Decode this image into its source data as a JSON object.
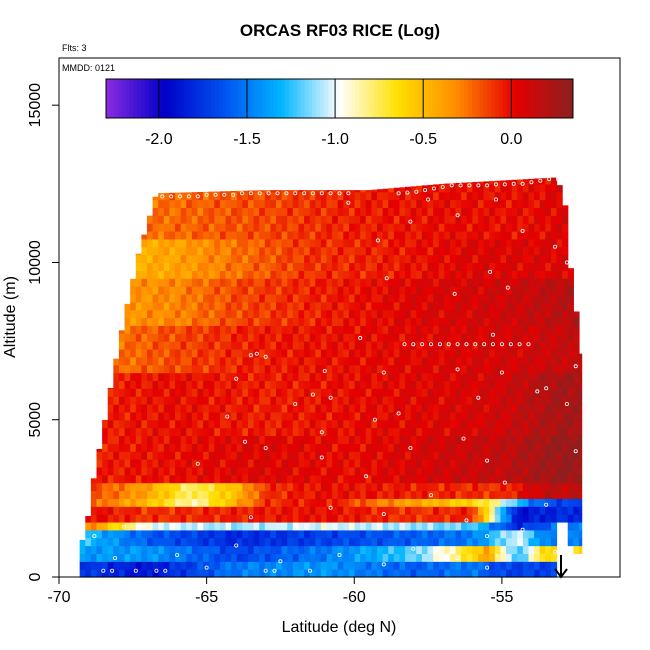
{
  "chart_data": {
    "type": "heatmap",
    "title": "ORCAS RF03 RICE (Log)",
    "xlabel": "Latitude (deg N)",
    "ylabel": "Altitude (m)",
    "xlim": [
      -70,
      -51
    ],
    "ylim": [
      0,
      16500
    ],
    "xticks": [
      -70,
      -65,
      -60,
      -55
    ],
    "yticks": [
      0,
      5000,
      10000,
      15000
    ],
    "flights_note": "Flts: 3",
    "date_note": "MMDD: 0121",
    "colorbar": {
      "range": [
        -2.3,
        0.35
      ],
      "ticks": [
        -2.0,
        -1.5,
        -1.0,
        -0.5,
        0.0
      ],
      "tick_labels": [
        "-2.0",
        "-1.5",
        "-1.0",
        "-0.5",
        "0.0"
      ],
      "colors": [
        "#8B2BE2",
        "#0000C8",
        "#0050F0",
        "#00B4FF",
        "#FFFFFF",
        "#FFE000",
        "#FF8C00",
        "#E60000",
        "#8B2020"
      ]
    },
    "envelope": [
      {
        "x": -69.3,
        "bottom": 0,
        "top": 800
      },
      {
        "x": -69.0,
        "bottom": 0,
        "top": 2000
      },
      {
        "x": -68.8,
        "bottom": 0,
        "top": 3300
      },
      {
        "x": -68.5,
        "bottom": 0,
        "top": 4700
      },
      {
        "x": -68.2,
        "bottom": 0,
        "top": 6300
      },
      {
        "x": -67.8,
        "bottom": 0,
        "top": 8200
      },
      {
        "x": -67.3,
        "bottom": 0,
        "top": 10300
      },
      {
        "x": -66.7,
        "bottom": 0,
        "top": 12200
      },
      {
        "x": -63.0,
        "bottom": 0,
        "top": 12300
      },
      {
        "x": -59.5,
        "bottom": 0,
        "top": 12300
      },
      {
        "x": -57.0,
        "bottom": 0,
        "top": 12500
      },
      {
        "x": -53.2,
        "bottom": 0,
        "top": 12700
      },
      {
        "x": -52.9,
        "bottom": 0,
        "top": 12200
      },
      {
        "x": -52.7,
        "bottom": 0,
        "top": 10000
      },
      {
        "x": -52.3,
        "bottom": 0,
        "top": 7100
      },
      {
        "x": -52.3,
        "bottom": 700,
        "top": 7100
      },
      {
        "x": -52.7,
        "bottom": 1000,
        "top": 5000
      },
      {
        "x": -52.9,
        "bottom": 1800,
        "top": 3000
      }
    ],
    "layers": [
      {
        "alt": [
          0,
          400
        ],
        "values": [
          [
            -69.5,
            -1.7
          ],
          [
            -67.0,
            -1.9
          ],
          [
            -64.0,
            -1.5
          ],
          [
            -61.0,
            -1.4
          ],
          [
            -58.0,
            -1.6
          ],
          [
            -56.0,
            -1.5
          ],
          [
            -55.0,
            -1.7
          ]
        ]
      },
      {
        "alt": [
          400,
          900
        ],
        "values": [
          [
            -69.5,
            -1.4
          ],
          [
            -67.0,
            -1.4
          ],
          [
            -64.0,
            -1.7
          ],
          [
            -61.0,
            -1.5
          ],
          [
            -58.0,
            -1.2
          ],
          [
            -56.5,
            -0.8
          ],
          [
            -55.5,
            -0.4
          ],
          [
            -54.5,
            -1.3
          ],
          [
            -53.5,
            -0.6
          ]
        ]
      },
      {
        "alt": [
          900,
          1400
        ],
        "values": [
          [
            -69.5,
            -1.2
          ],
          [
            -67.0,
            -1.6
          ],
          [
            -64.0,
            -1.8
          ],
          [
            -61.0,
            -1.7
          ],
          [
            -58.0,
            -1.6
          ],
          [
            -56.0,
            -1.5
          ],
          [
            -54.5,
            -1.0
          ],
          [
            -53.5,
            -1.5
          ]
        ]
      },
      {
        "alt": [
          1400,
          1800
        ],
        "values": [
          [
            -69.5,
            -0.1
          ],
          [
            -67.0,
            -1.0
          ],
          [
            -64.0,
            -1.1
          ],
          [
            -61.0,
            -1.0
          ],
          [
            -58.0,
            -1.1
          ],
          [
            -56.0,
            -1.2
          ],
          [
            -54.5,
            -1.8
          ],
          [
            -53.0,
            -1.5
          ]
        ]
      },
      {
        "alt": [
          1800,
          2200
        ],
        "values": [
          [
            -69.5,
            0.05
          ],
          [
            -67.0,
            -0.1
          ],
          [
            -64.0,
            -0.05
          ],
          [
            -61.0,
            0.0
          ],
          [
            -58.0,
            -0.1
          ],
          [
            -56.0,
            -0.05
          ],
          [
            -54.5,
            -1.9
          ],
          [
            -53.0,
            -1.8
          ]
        ]
      },
      {
        "alt": [
          2200,
          2500
        ],
        "values": [
          [
            -69.5,
            -0.1
          ],
          [
            -67.0,
            -0.5
          ],
          [
            -65.5,
            -0.9
          ],
          [
            -64.5,
            -0.6
          ],
          [
            -63.0,
            -0.1
          ],
          [
            -61.0,
            0.0
          ],
          [
            -59.0,
            -0.3
          ],
          [
            -57.0,
            -0.5
          ],
          [
            -55.5,
            -0.7
          ],
          [
            -54.0,
            -1.5
          ],
          [
            -53.0,
            -1.7
          ]
        ]
      },
      {
        "alt": [
          2500,
          2900
        ],
        "values": [
          [
            -69.5,
            -0.05
          ],
          [
            -67.0,
            -0.4
          ],
          [
            -65.5,
            -0.8
          ],
          [
            -64.0,
            -0.5
          ],
          [
            -63.0,
            -0.1
          ],
          [
            -61.0,
            0.0
          ],
          [
            -58.0,
            -0.05
          ],
          [
            -55.0,
            -0.1
          ],
          [
            -53.5,
            0.15
          ]
        ]
      },
      {
        "alt": [
          2900,
          4500
        ],
        "values": [
          [
            -69.0,
            -0.05
          ],
          [
            -66.0,
            0.0
          ],
          [
            -63.0,
            0.05
          ],
          [
            -60.0,
            0.0
          ],
          [
            -57.0,
            0.1
          ],
          [
            -55.0,
            0.15
          ],
          [
            -53.0,
            0.3
          ]
        ]
      },
      {
        "alt": [
          4500,
          6500
        ],
        "values": [
          [
            -68.5,
            -0.05
          ],
          [
            -66.0,
            0.0
          ],
          [
            -63.0,
            -0.05
          ],
          [
            -60.0,
            0.0
          ],
          [
            -57.0,
            0.05
          ],
          [
            -55.0,
            0.1
          ],
          [
            -53.0,
            0.25
          ]
        ]
      },
      {
        "alt": [
          6500,
          8000
        ],
        "values": [
          [
            -68.0,
            -0.25
          ],
          [
            -66.0,
            -0.15
          ],
          [
            -63.5,
            -0.05
          ],
          [
            -60.0,
            0.0
          ],
          [
            -57.0,
            0.05
          ],
          [
            -54.0,
            0.1
          ],
          [
            -52.5,
            0.15
          ]
        ]
      },
      {
        "alt": [
          8000,
          9500
        ],
        "values": [
          [
            -67.5,
            -0.35
          ],
          [
            -66.0,
            -0.3
          ],
          [
            -64.0,
            -0.15
          ],
          [
            -61.0,
            -0.05
          ],
          [
            -58.0,
            0.05
          ],
          [
            -55.0,
            0.1
          ],
          [
            -52.5,
            0.2
          ]
        ]
      },
      {
        "alt": [
          9500,
          10800
        ],
        "values": [
          [
            -67.3,
            -0.45
          ],
          [
            -66.0,
            -0.4
          ],
          [
            -64.0,
            -0.25
          ],
          [
            -61.5,
            -0.1
          ],
          [
            -59.0,
            -0.05
          ],
          [
            -56.0,
            0.05
          ],
          [
            -52.8,
            0.05
          ]
        ]
      },
      {
        "alt": [
          10800,
          12800
        ],
        "values": [
          [
            -67.0,
            -0.25
          ],
          [
            -65.0,
            -0.2
          ],
          [
            -63.0,
            -0.15
          ],
          [
            -60.0,
            -0.05
          ],
          [
            -57.0,
            0.0
          ],
          [
            -54.0,
            0.0
          ],
          [
            -53.0,
            0.05
          ]
        ]
      }
    ],
    "markers": [
      [
        -66.5,
        12100
      ],
      [
        -66.2,
        12100
      ],
      [
        -65.9,
        12100
      ],
      [
        -65.6,
        12100
      ],
      [
        -65.3,
        12100
      ],
      [
        -65.0,
        12150
      ],
      [
        -64.7,
        12150
      ],
      [
        -64.4,
        12150
      ],
      [
        -64.1,
        12150
      ],
      [
        -63.8,
        12200
      ],
      [
        -63.5,
        12200
      ],
      [
        -63.2,
        12200
      ],
      [
        -62.9,
        12200
      ],
      [
        -62.6,
        12200
      ],
      [
        -62.3,
        12200
      ],
      [
        -62.0,
        12200
      ],
      [
        -61.7,
        12200
      ],
      [
        -61.4,
        12200
      ],
      [
        -61.1,
        12200
      ],
      [
        -60.8,
        12200
      ],
      [
        -60.5,
        12200
      ],
      [
        -60.2,
        12200
      ],
      [
        -58.5,
        12200
      ],
      [
        -58.2,
        12220
      ],
      [
        -57.9,
        12250
      ],
      [
        -57.6,
        12300
      ],
      [
        -57.3,
        12350
      ],
      [
        -57.0,
        12400
      ],
      [
        -56.7,
        12450
      ],
      [
        -56.4,
        12450
      ],
      [
        -56.1,
        12450
      ],
      [
        -55.8,
        12450
      ],
      [
        -55.5,
        12450
      ],
      [
        -55.2,
        12480
      ],
      [
        -54.9,
        12480
      ],
      [
        -54.6,
        12500
      ],
      [
        -54.3,
        12500
      ],
      [
        -54.0,
        12550
      ],
      [
        -53.7,
        12600
      ],
      [
        -53.4,
        12650
      ],
      [
        -53.1,
        12650
      ],
      [
        -60.2,
        11900
      ],
      [
        -58.1,
        11300
      ],
      [
        -57.5,
        12000
      ],
      [
        -56.5,
        11500
      ],
      [
        -55.2,
        12000
      ],
      [
        -54.3,
        11000
      ],
      [
        -53.2,
        10500
      ],
      [
        -52.8,
        10000
      ],
      [
        -59.2,
        10700
      ],
      [
        -55.4,
        9700
      ],
      [
        -54.8,
        9200
      ],
      [
        -56.6,
        9000
      ],
      [
        -58.9,
        9500
      ],
      [
        -58.3,
        7400
      ],
      [
        -58.0,
        7400
      ],
      [
        -57.7,
        7400
      ],
      [
        -57.4,
        7400
      ],
      [
        -57.1,
        7400
      ],
      [
        -56.8,
        7400
      ],
      [
        -56.5,
        7400
      ],
      [
        -56.2,
        7400
      ],
      [
        -55.9,
        7400
      ],
      [
        -55.6,
        7400
      ],
      [
        -55.3,
        7400
      ],
      [
        -55.0,
        7400
      ],
      [
        -54.7,
        7400
      ],
      [
        -54.4,
        7400
      ],
      [
        -54.1,
        7400
      ],
      [
        -63.5,
        7050
      ],
      [
        -63.3,
        7100
      ],
      [
        -63.0,
        7000
      ],
      [
        -64.0,
        6300
      ],
      [
        -61.0,
        6550
      ],
      [
        -59.0,
        6500
      ],
      [
        -56.5,
        6600
      ],
      [
        -55.0,
        6500
      ],
      [
        -53.5,
        6000
      ],
      [
        -52.5,
        6700
      ],
      [
        -59.8,
        7600
      ],
      [
        -55.3,
        7700
      ],
      [
        -62.0,
        5500
      ],
      [
        -61.4,
        5800
      ],
      [
        -60.8,
        5700
      ],
      [
        -58.5,
        5200
      ],
      [
        -56.3,
        4400
      ],
      [
        -55.8,
        5700
      ],
      [
        -53.8,
        5900
      ],
      [
        -52.8,
        5500
      ],
      [
        -64.3,
        5100
      ],
      [
        -63.7,
        4300
      ],
      [
        -61.1,
        4600
      ],
      [
        -59.3,
        5000
      ],
      [
        -58.1,
        4100
      ],
      [
        -65.3,
        3600
      ],
      [
        -63.0,
        4100
      ],
      [
        -61.1,
        3800
      ],
      [
        -59.6,
        3200
      ],
      [
        -57.4,
        2600
      ],
      [
        -55.5,
        3700
      ],
      [
        -54.9,
        3000
      ],
      [
        -53.5,
        2300
      ],
      [
        -52.5,
        4000
      ],
      [
        -60.8,
        2200
      ],
      [
        -67.8,
        1600
      ],
      [
        -66.2,
        1600
      ],
      [
        -63.5,
        1900
      ],
      [
        -59.0,
        2000
      ],
      [
        -56.2,
        1800
      ],
      [
        -54.3,
        1500
      ],
      [
        -53.2,
        800
      ],
      [
        -55.5,
        1300
      ],
      [
        -69.5,
        900
      ],
      [
        -68.8,
        1300
      ],
      [
        -68.1,
        600
      ],
      [
        -67.4,
        200
      ],
      [
        -66.0,
        700
      ],
      [
        -65.0,
        300
      ],
      [
        -64.0,
        1000
      ],
      [
        -62.5,
        500
      ],
      [
        -61.5,
        200
      ],
      [
        -60.5,
        700
      ],
      [
        -59.0,
        400
      ],
      [
        -58.0,
        900
      ],
      [
        -56.5,
        600
      ],
      [
        -55.5,
        300
      ],
      [
        -68.5,
        200
      ],
      [
        -68.2,
        200
      ],
      [
        -66.7,
        200
      ],
      [
        -66.4,
        200
      ],
      [
        -63.0,
        200
      ],
      [
        -62.7,
        200
      ]
    ]
  }
}
